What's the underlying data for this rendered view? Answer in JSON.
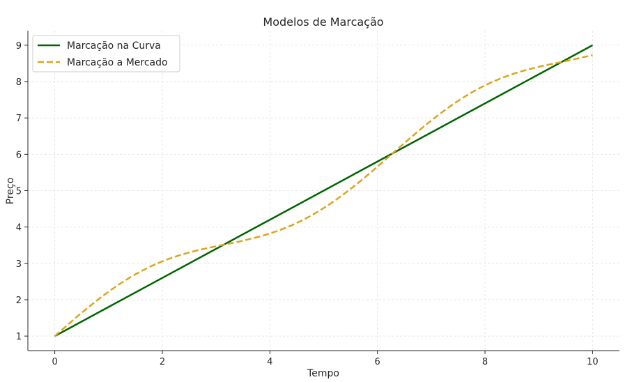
{
  "chart_data": {
    "type": "line",
    "title": "Modelos de Marcação",
    "xlabel": "Tempo",
    "ylabel": "Preço",
    "xlim": [
      -0.5,
      10.5
    ],
    "ylim": [
      0.6,
      9.4
    ],
    "xticks": [
      0,
      2,
      4,
      6,
      8,
      10
    ],
    "yticks": [
      1,
      2,
      3,
      4,
      5,
      6,
      7,
      8,
      9
    ],
    "grid": true,
    "legend_position": "top-left",
    "series": [
      {
        "name": "Marcação na Curva",
        "color": "#006400",
        "style": "solid",
        "x": [
          0,
          10
        ],
        "y": [
          1,
          9
        ]
      },
      {
        "name": "Marcação a Mercado",
        "color": "#DAA520",
        "style": "dashed",
        "x": [
          0,
          0.5,
          1,
          1.5,
          2,
          2.5,
          3,
          3.5,
          4,
          4.5,
          5,
          5.5,
          6,
          6.5,
          7,
          7.5,
          8,
          8.5,
          9,
          9.5,
          10
        ],
        "y": [
          1.0,
          1.64,
          2.221,
          2.699,
          3.055,
          3.299,
          3.471,
          3.625,
          3.822,
          4.111,
          4.521,
          5.047,
          5.66,
          6.308,
          6.928,
          7.469,
          7.895,
          8.199,
          8.406,
          8.562,
          8.728
        ]
      }
    ]
  }
}
